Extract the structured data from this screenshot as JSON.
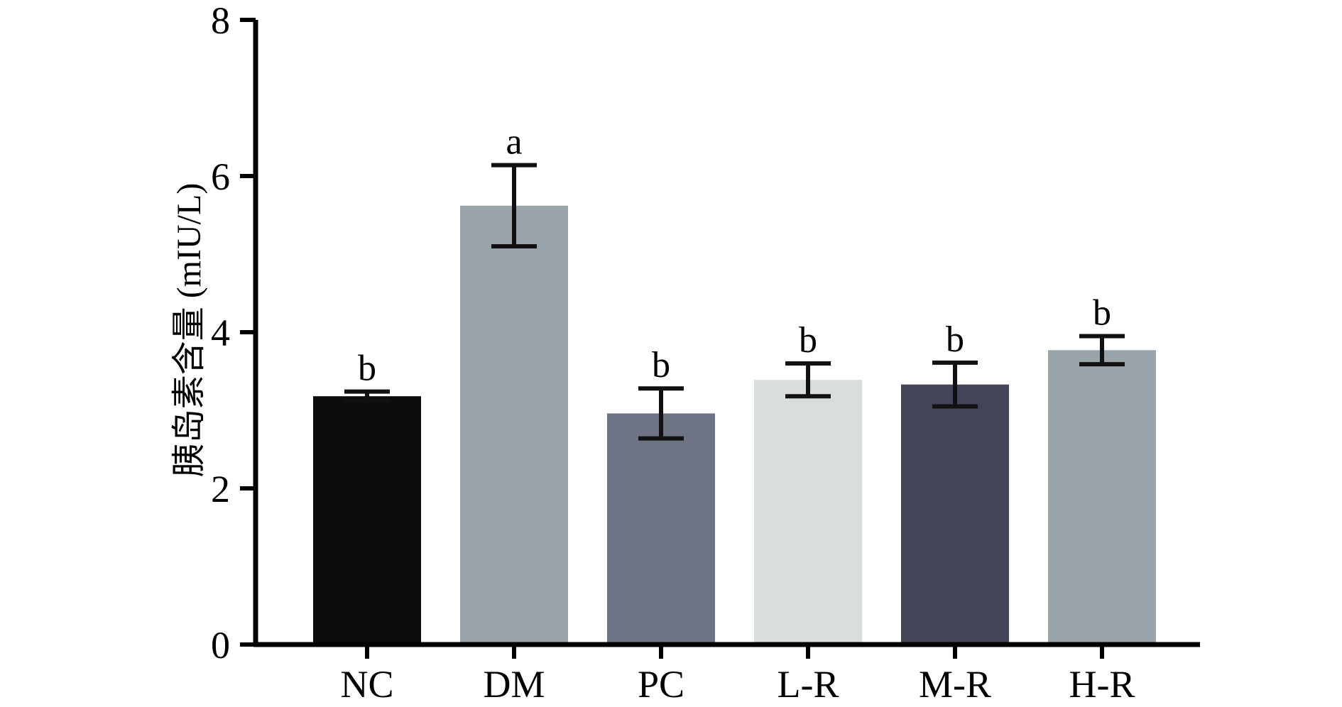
{
  "chart_data": {
    "type": "bar",
    "ylabel": "胰岛素含量 (mIU/L)",
    "xlabel": "",
    "ylim": [
      0,
      8
    ],
    "yticks": [
      0,
      2,
      4,
      6,
      8
    ],
    "grid": false,
    "categories": [
      "NC",
      "DM",
      "PC",
      "L-R",
      "M-R",
      "H-R"
    ],
    "values": [
      3.18,
      5.62,
      2.96,
      3.39,
      3.33,
      3.77
    ],
    "error": [
      0.06,
      0.52,
      0.32,
      0.21,
      0.28,
      0.18
    ],
    "significance": [
      "b",
      "a",
      "b",
      "b",
      "b",
      "b"
    ],
    "colors": [
      "#0b0c0c",
      "#9aa4ab",
      "#6e7484",
      "#d9dedb",
      "#434458",
      "#9aa4ab"
    ]
  }
}
